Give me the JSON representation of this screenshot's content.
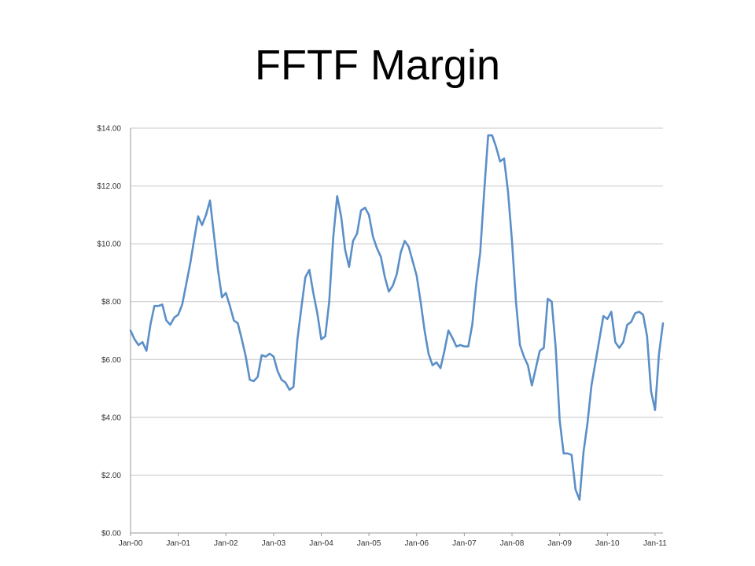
{
  "slide": {
    "title": "FFTF Margin"
  },
  "chart_data": {
    "type": "line",
    "title": "FFTF Margin",
    "xlabel": "",
    "ylabel": "",
    "ylim": [
      0,
      14
    ],
    "yticks": [
      "$0.00",
      "$2.00",
      "$4.00",
      "$6.00",
      "$8.00",
      "$10.00",
      "$12.00",
      "$14.00"
    ],
    "xticks": [
      "Jan-00",
      "Jan-01",
      "Jan-02",
      "Jan-03",
      "Jan-04",
      "Jan-05",
      "Jan-06",
      "Jan-07",
      "Jan-08",
      "Jan-09",
      "Jan-10",
      "Jan-11"
    ],
    "grid": true,
    "legend": "none",
    "line_color": "#5b8fc7",
    "series": [
      {
        "values": [
          7.0,
          6.7,
          6.5,
          6.6,
          6.3,
          7.2,
          7.85,
          7.85,
          7.9,
          7.35,
          7.2,
          7.45,
          7.55,
          7.9,
          8.6,
          9.3,
          10.15,
          10.95,
          10.65,
          11.0,
          11.5,
          10.3,
          9.1,
          8.15,
          8.3,
          7.85,
          7.35,
          7.25,
          6.7,
          6.1,
          5.3,
          5.25,
          5.4,
          6.15,
          6.1,
          6.2,
          6.1,
          5.6,
          5.3,
          5.2,
          4.95,
          5.05,
          6.7,
          7.8,
          8.85,
          9.1,
          8.3,
          7.6,
          6.7,
          6.8,
          8.0,
          10.2,
          11.65,
          10.95,
          9.8,
          9.2,
          10.1,
          10.35,
          11.15,
          11.25,
          11.0,
          10.25,
          9.85,
          9.55,
          8.85,
          8.35,
          8.55,
          8.95,
          9.7,
          10.1,
          9.9,
          9.4,
          8.9,
          8.0,
          7.0,
          6.2,
          5.8,
          5.9,
          5.7,
          6.3,
          7.0,
          6.75,
          6.45,
          6.5,
          6.45,
          6.45,
          7.2,
          8.6,
          9.7,
          11.8,
          13.75,
          13.75,
          13.35,
          12.85,
          12.95,
          11.8,
          10.1,
          8.0,
          6.5,
          6.1,
          5.8,
          5.1,
          5.7,
          6.3,
          6.4,
          8.1,
          8.0,
          6.4,
          3.9,
          2.75,
          2.75,
          2.7,
          1.5,
          1.15,
          2.8,
          3.8,
          5.1,
          5.9,
          6.7,
          7.5,
          7.4,
          7.65,
          6.6,
          6.4,
          6.6,
          7.2,
          7.3,
          7.6,
          7.65,
          7.55,
          6.8,
          4.9,
          4.25,
          6.2,
          7.25
        ]
      }
    ]
  }
}
